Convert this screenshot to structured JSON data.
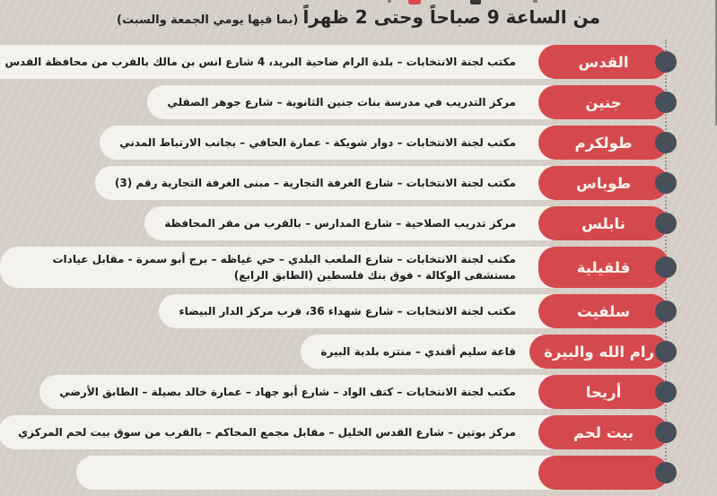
{
  "header": {
    "schedule_main": "من الساعة 9 صباحاً وحتى 2 ظهراً",
    "schedule_note": "(بما فيها يومي الجمعة والسبت)"
  },
  "colors": {
    "background": "#d8d1c9",
    "accent_red": "#d5494e",
    "timeline_dot": "#47505a",
    "address_pill": "#f4f2ec"
  },
  "locations": [
    {
      "city": "القدس",
      "address": "مكتب لجنة الانتخابات – بلدة الرام ضاحية البريد، 4 شارع انس بن مالك بالقرب من محافظة القدس"
    },
    {
      "city": "جنين",
      "address": "مركز التدريب في مدرسة بنات جنين الثانوية – شارع جوهر الصقلي"
    },
    {
      "city": "طولكرم",
      "address": "مكتب لجنة الانتخابات – دوار شويكة - عمارة الحافي – بجانب الارتباط المدني"
    },
    {
      "city": "طوباس",
      "address": "مكتب لجنة الانتخابات – شارع الغرفة التجارية – مبنى الغرفة التجارية رقم (3)"
    },
    {
      "city": "نابلس",
      "address": "مركز تدريب الصلاحية – شارع المدارس – بالقرب من مقر المحافظة"
    },
    {
      "city": "قلقيلية",
      "address": "مكتب لجنة الانتخابات – شارع الملعب البلدي – حي غياظه – برج أبو سمرة - مقابل عيادات مستشفى الوكالة - فوق بنك فلسطين (الطابق الرابع)"
    },
    {
      "city": "سلفيت",
      "address": "مكتب لجنة الانتخابات – شارع شهداء 36، قرب مركز الدار البيضاء"
    },
    {
      "city": "رام الله والبيرة",
      "address": "قاعة سليم أفندي – منتزه بلدية البيرة"
    },
    {
      "city": "أريحا",
      "address": "مكتب لجنة الانتخابات – كتف الواد – شارع أبو جهاد – عمارة خالد بصيلة – الطابق الأرضي"
    },
    {
      "city": "بيت لحم",
      "address": "مركز بوتين – شارع القدس الخليل – مقابل مجمع المحاكم – بالقرب من سوق بيت لحم المركزي"
    }
  ]
}
